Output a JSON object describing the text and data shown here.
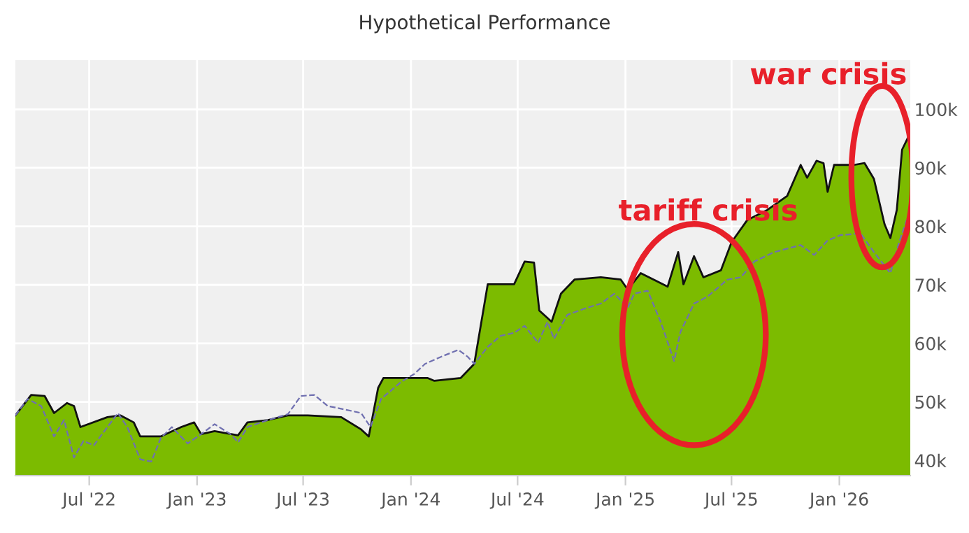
{
  "chart_data": {
    "type": "area",
    "title": "Hypothetical Performance",
    "series": [
      {
        "color": "#7cbb00",
        "x": [
          "2022-02-25",
          "2022-03-24",
          "2022-04-16",
          "2022-05-02",
          "2022-05-24",
          "2022-06-05",
          "2022-06-16",
          "2022-08-01",
          "2022-08-23",
          "2022-09-15",
          "2022-09-26",
          "2022-10-31",
          "2022-12-05",
          "2022-12-27",
          "2023-01-08",
          "2023-01-31",
          "2023-03-12",
          "2023-03-28",
          "2023-05-02",
          "2023-06-05",
          "2023-07-09",
          "2023-09-04",
          "2023-10-08",
          "2023-10-21",
          "2023-11-06",
          "2023-11-15",
          "2024-01-29",
          "2024-02-10",
          "2024-03-26",
          "2024-04-18",
          "2024-05-11",
          "2024-06-02",
          "2024-06-25",
          "2024-07-13",
          "2024-07-29",
          "2024-08-07",
          "2024-08-28",
          "2024-09-13",
          "2024-10-06",
          "2024-11-20",
          "2024-12-24",
          "2025-01-05",
          "2025-01-27",
          "2025-03-14",
          "2025-04-01",
          "2025-04-10",
          "2025-04-28",
          "2025-05-14",
          "2025-06-13",
          "2025-07-01",
          "2025-07-28",
          "2025-08-31",
          "2025-10-04",
          "2025-10-27",
          "2025-11-07",
          "2025-11-23",
          "2025-12-05",
          "2025-12-12",
          "2025-12-23",
          "2026-01-26",
          "2026-02-13",
          "2026-03-01",
          "2026-03-19",
          "2026-03-29",
          "2026-04-09",
          "2026-04-18",
          "2026-05-02"
        ],
        "values": [
          47700,
          51200,
          51000,
          48100,
          49800,
          49300,
          45700,
          47400,
          47700,
          46500,
          44100,
          44100,
          45700,
          46500,
          44500,
          45000,
          44300,
          46500,
          46900,
          47700,
          47700,
          47400,
          45300,
          44100,
          52400,
          54100,
          54100,
          53600,
          54100,
          56500,
          70100,
          70100,
          70100,
          74000,
          73800,
          65600,
          63700,
          68500,
          70900,
          71300,
          70900,
          69200,
          72000,
          69700,
          75600,
          70100,
          74900,
          71300,
          72500,
          77300,
          81100,
          82800,
          85200,
          90500,
          88300,
          91200,
          90800,
          85900,
          90500,
          90500,
          90800,
          88100,
          80400,
          78000,
          82800,
          93100,
          96000
        ]
      },
      {
        "type": "line",
        "color": "#7070b0",
        "line_style": "dashed",
        "x": [
          "2022-02-25",
          "2022-03-18",
          "2022-04-10",
          "2022-05-02",
          "2022-05-19",
          "2022-06-05",
          "2022-06-21",
          "2022-07-09",
          "2022-08-01",
          "2022-08-19",
          "2022-09-04",
          "2022-09-26",
          "2022-10-15",
          "2022-10-31",
          "2022-11-19",
          "2022-12-16",
          "2023-01-08",
          "2023-01-31",
          "2023-02-27",
          "2023-03-12",
          "2023-03-28",
          "2023-05-02",
          "2023-06-05",
          "2023-06-27",
          "2023-07-20",
          "2023-08-12",
          "2023-09-15",
          "2023-10-08",
          "2023-10-24",
          "2023-11-11",
          "2023-12-15",
          "2024-01-07",
          "2024-01-25",
          "2024-02-21",
          "2024-03-22",
          "2024-04-07",
          "2024-04-18",
          "2024-05-11",
          "2024-06-02",
          "2024-06-25",
          "2024-07-13",
          "2024-08-05",
          "2024-08-21",
          "2024-09-01",
          "2024-09-24",
          "2024-10-28",
          "2024-11-20",
          "2024-12-13",
          "2025-01-05",
          "2025-01-16",
          "2025-02-08",
          "2025-03-02",
          "2025-03-25",
          "2025-04-05",
          "2025-04-28",
          "2025-05-21",
          "2025-06-24",
          "2025-07-17",
          "2025-08-09",
          "2025-09-12",
          "2025-10-27",
          "2025-11-19",
          "2025-12-12",
          "2026-01-03",
          "2026-02-06",
          "2026-03-01",
          "2026-03-29",
          "2026-04-13",
          "2026-05-02"
        ],
        "values": [
          47700,
          50500,
          49300,
          44100,
          46900,
          40500,
          43300,
          42600,
          45700,
          48100,
          45700,
          40200,
          39800,
          43800,
          45700,
          42900,
          44500,
          46200,
          44500,
          43100,
          45700,
          46900,
          47900,
          51000,
          51200,
          49300,
          48600,
          48100,
          45700,
          50500,
          53400,
          54800,
          56500,
          57700,
          58900,
          57700,
          56500,
          59400,
          61300,
          61800,
          63000,
          60100,
          63700,
          60800,
          64900,
          66100,
          66800,
          68500,
          66100,
          68500,
          69000,
          63700,
          57000,
          62000,
          66800,
          68000,
          70900,
          71300,
          74000,
          75600,
          76800,
          75100,
          77600,
          78500,
          78800,
          75600,
          72000,
          77300,
          82800
        ]
      }
    ],
    "xlim": [
      "2022-02-25",
      "2026-05-02"
    ],
    "xticks": [
      {
        "value": "2022-07-01",
        "label": "Jul '22"
      },
      {
        "value": "2023-01-01",
        "label": "Jan '23"
      },
      {
        "value": "2023-07-01",
        "label": "Jul '23"
      },
      {
        "value": "2024-01-01",
        "label": "Jan '24"
      },
      {
        "value": "2024-07-01",
        "label": "Jul '24"
      },
      {
        "value": "2025-01-01",
        "label": "Jan '25"
      },
      {
        "value": "2025-07-01",
        "label": "Jul '25"
      },
      {
        "value": "2026-01-01",
        "label": "Jan '26"
      }
    ],
    "ylim": [
      37400,
      108400
    ],
    "yticks": [
      {
        "value": 40000,
        "label": "40k"
      },
      {
        "value": 50000,
        "label": "50k"
      },
      {
        "value": 60000,
        "label": "60k"
      },
      {
        "value": 70000,
        "label": "70k"
      },
      {
        "value": 80000,
        "label": "80k"
      },
      {
        "value": 90000,
        "label": "90k"
      },
      {
        "value": 100000,
        "label": "100k"
      }
    ],
    "grid": true,
    "annotations": [
      "tariff crisis",
      "war crisis"
    ]
  }
}
